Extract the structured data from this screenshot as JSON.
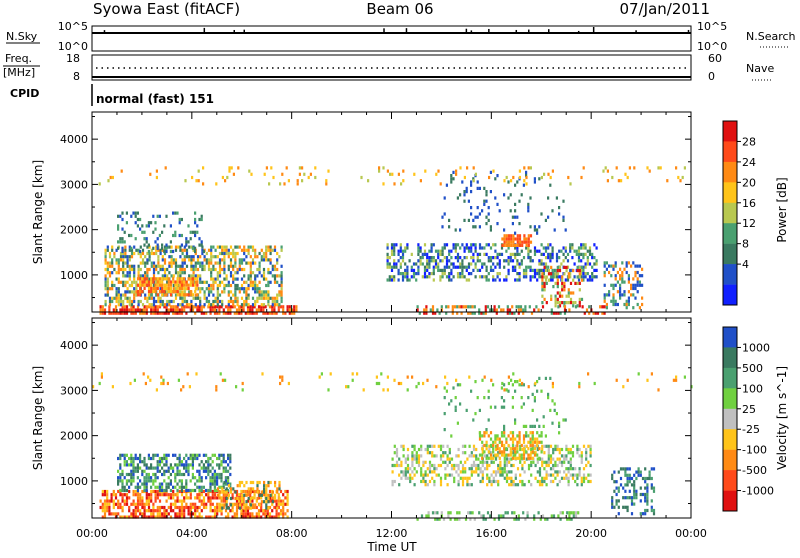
{
  "header": {
    "title": "Syowa East (fitACF)",
    "beam": "Beam 06",
    "date": "07/Jan/2011"
  },
  "panels": {
    "nsky": {
      "left_label": "N.Sky",
      "right_label": "N.Search",
      "ticks_left": [
        "10^5",
        "10^0"
      ],
      "ticks_right": [
        "10^5",
        "10^0"
      ]
    },
    "freq": {
      "left_label_1": "Freq.",
      "left_label_2": "[MHz]",
      "right_label": "Nave",
      "ticks_left": [
        "18",
        "8"
      ],
      "ticks_right": [
        "60",
        "0"
      ]
    },
    "cpid": {
      "label": "CPID",
      "value": "normal (fast) 151"
    }
  },
  "chart_data": [
    {
      "type": "heatmap",
      "quantity": "power",
      "ylabel": "Slant Range [km]",
      "xlabel": "",
      "ylim": [
        180,
        4600
      ],
      "yticks": [
        1000,
        2000,
        3000,
        4000
      ],
      "xticks": [
        "00:00",
        "04:00",
        "08:00",
        "12:00",
        "16:00",
        "20:00",
        "00:00"
      ],
      "xlim_hours": [
        0,
        24
      ],
      "colorbar": {
        "label": "Power [dB]",
        "ticks": [
          "28",
          "24",
          "20",
          "16",
          "12",
          "8",
          "4"
        ],
        "colors": [
          "#e01010",
          "#ff4a1a",
          "#ff8a14",
          "#ffc41a",
          "#b8c850",
          "#4aa070",
          "#3a7a60",
          "#2050c8",
          "#1020ff"
        ]
      },
      "regions": [
        {
          "t0": 0.3,
          "t1": 8.2,
          "r0": 180,
          "r1": 330,
          "colors": [
            "#e01010",
            "#ff4a1a",
            "#ff8a14"
          ],
          "density": 0.75
        },
        {
          "t0": 0.5,
          "t1": 7.6,
          "r0": 330,
          "r1": 1650,
          "colors": [
            "#2050c8",
            "#3a7a60",
            "#4aa070",
            "#b8c850",
            "#ffc41a",
            "#ff8a14"
          ],
          "density": 0.55
        },
        {
          "t0": 1.8,
          "t1": 4.2,
          "r0": 550,
          "r1": 950,
          "colors": [
            "#ff8a14",
            "#ff4a1a",
            "#ffc41a"
          ],
          "density": 0.7
        },
        {
          "t0": 1.0,
          "t1": 4.5,
          "r0": 1500,
          "r1": 2400,
          "colors": [
            "#2050c8",
            "#3a7a60",
            "#4aa070"
          ],
          "density": 0.2
        },
        {
          "t0": 11.8,
          "t1": 20.2,
          "r0": 900,
          "r1": 1700,
          "colors": [
            "#2050c8",
            "#1020ff",
            "#3a7a60",
            "#4aa070",
            "#b8c850"
          ],
          "density": 0.45
        },
        {
          "t0": 16.4,
          "t1": 17.6,
          "r0": 1650,
          "r1": 1900,
          "colors": [
            "#ff4a1a",
            "#ff8a14"
          ],
          "density": 0.7
        },
        {
          "t0": 18.0,
          "t1": 19.6,
          "r0": 300,
          "r1": 1200,
          "colors": [
            "#4aa070",
            "#b8c850",
            "#ff8a14",
            "#e01010"
          ],
          "density": 0.45
        },
        {
          "t0": 13.0,
          "t1": 20.5,
          "r0": 180,
          "r1": 330,
          "colors": [
            "#ff8a14",
            "#e01010",
            "#4aa070"
          ],
          "density": 0.35
        },
        {
          "t0": 14.0,
          "t1": 19.0,
          "r0": 1900,
          "r1": 3300,
          "colors": [
            "#2050c8",
            "#3a7a60"
          ],
          "density": 0.1
        },
        {
          "t0": 20.5,
          "t1": 22.0,
          "r0": 250,
          "r1": 1300,
          "colors": [
            "#2050c8",
            "#ff8a14",
            "#4aa070"
          ],
          "density": 0.4
        },
        {
          "t0": 0.0,
          "t1": 24.0,
          "r0": 3000,
          "r1": 3400,
          "colors": [
            "#ffc41a",
            "#b8c850",
            "#ff8a14"
          ],
          "density": 0.06
        }
      ]
    },
    {
      "type": "heatmap",
      "quantity": "velocity",
      "ylabel": "Slant Range [km]",
      "xlabel": "Time UT",
      "ylim": [
        180,
        4600
      ],
      "yticks": [
        1000,
        2000,
        3000,
        4000
      ],
      "xticks": [
        "00:00",
        "04:00",
        "08:00",
        "12:00",
        "16:00",
        "20:00",
        "00:00"
      ],
      "xlim_hours": [
        0,
        24
      ],
      "colorbar": {
        "label": "Velocity [m s^-1]",
        "ticks": [
          "1000",
          "500",
          "100",
          "25",
          "-25",
          "-100",
          "-500",
          "-1000"
        ],
        "colors": [
          "#2050c8",
          "#3a7a60",
          "#4aa070",
          "#70d040",
          "#c0c0c0",
          "#ffc41a",
          "#ff8a14",
          "#ff4a1a",
          "#e01010"
        ]
      },
      "regions": [
        {
          "t0": 0.3,
          "t1": 7.8,
          "r0": 180,
          "r1": 800,
          "colors": [
            "#e01010",
            "#ff4a1a",
            "#ff8a14",
            "#ffc41a"
          ],
          "density": 0.65
        },
        {
          "t0": 1.0,
          "t1": 5.5,
          "r0": 800,
          "r1": 1600,
          "colors": [
            "#2050c8",
            "#3a7a60",
            "#4aa070",
            "#70d040"
          ],
          "density": 0.55
        },
        {
          "t0": 5.0,
          "t1": 7.5,
          "r0": 400,
          "r1": 1000,
          "colors": [
            "#ff8a14",
            "#ffc41a",
            "#3a7a60"
          ],
          "density": 0.4
        },
        {
          "t0": 12.0,
          "t1": 20.0,
          "r0": 900,
          "r1": 1800,
          "colors": [
            "#c0c0c0",
            "#70d040",
            "#4aa070",
            "#ffc41a"
          ],
          "density": 0.45
        },
        {
          "t0": 15.5,
          "t1": 18.0,
          "r0": 1500,
          "r1": 2100,
          "colors": [
            "#ff8a14",
            "#ffc41a",
            "#70d040"
          ],
          "density": 0.5
        },
        {
          "t0": 13.0,
          "t1": 19.5,
          "r0": 180,
          "r1": 330,
          "colors": [
            "#4aa070",
            "#70d040",
            "#c0c0c0"
          ],
          "density": 0.4
        },
        {
          "t0": 20.8,
          "t1": 22.5,
          "r0": 300,
          "r1": 1300,
          "colors": [
            "#2050c8",
            "#3a7a60",
            "#4aa070"
          ],
          "density": 0.4
        },
        {
          "t0": 14.0,
          "t1": 19.0,
          "r0": 2000,
          "r1": 3300,
          "colors": [
            "#4aa070",
            "#70d040"
          ],
          "density": 0.1
        },
        {
          "t0": 0.0,
          "t1": 24.0,
          "r0": 3000,
          "r1": 3400,
          "colors": [
            "#ffc41a",
            "#70d040",
            "#ff8a14"
          ],
          "density": 0.06
        }
      ]
    }
  ]
}
